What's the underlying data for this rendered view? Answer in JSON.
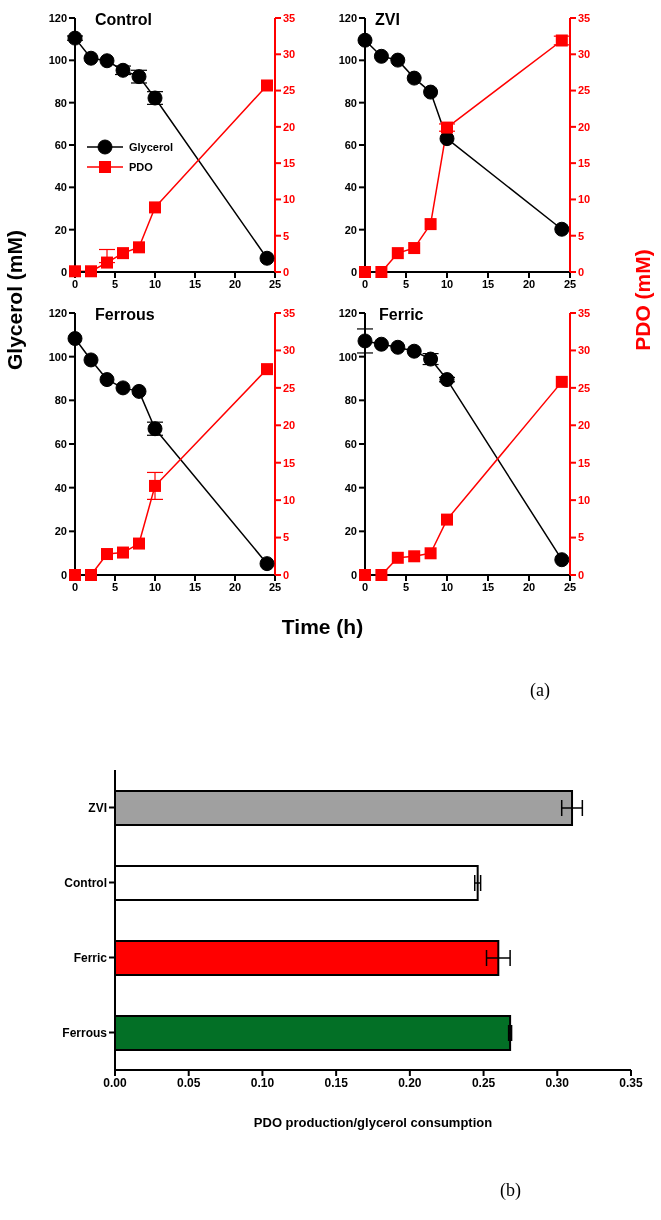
{
  "chart_data": [
    {
      "type": "line",
      "title": "Control",
      "ylabel": "Glycerol (mM)",
      "legend": "left",
      "xlim": [
        0,
        25
      ],
      "xticks": [
        0,
        5,
        10,
        15,
        20,
        25
      ],
      "ylim": [
        0,
        120
      ],
      "yticks": [
        0,
        20,
        40,
        60,
        80,
        100,
        120
      ],
      "y2lim": [
        0,
        35
      ],
      "y2ticks": [
        0,
        5,
        10,
        15,
        20,
        25,
        30,
        35
      ],
      "x": [
        0,
        2,
        4,
        6,
        8,
        10,
        24
      ],
      "series": [
        {
          "name": "Glycerol",
          "color": "#000000",
          "marker": "circle",
          "values": [
            110.5,
            101,
            99.8,
            95.3,
            92.3,
            82.2,
            6.5
          ],
          "errors": [
            1,
            null,
            null,
            2,
            3,
            3,
            null
          ]
        },
        {
          "name": "PDO",
          "color": "#ff0000",
          "marker": "square",
          "axis": "y2",
          "values": [
            0.1,
            0.1,
            1.3,
            2.6,
            3.4,
            8.9,
            25.7
          ],
          "errors": [
            null,
            null,
            [
              1.3,
              3.1
            ],
            null,
            null,
            null,
            null
          ]
        }
      ]
    },
    {
      "type": "line",
      "title": "ZVI",
      "y2label": "PDO (mM)",
      "xlim": [
        0,
        25
      ],
      "xticks": [
        0,
        5,
        10,
        15,
        20,
        25
      ],
      "ylim": [
        0,
        120
      ],
      "yticks": [
        0,
        20,
        40,
        60,
        80,
        100,
        120
      ],
      "y2lim": [
        0,
        35
      ],
      "y2ticks": [
        0,
        5,
        10,
        15,
        20,
        25,
        30,
        35
      ],
      "x": [
        0,
        2,
        4,
        6,
        8,
        10,
        24
      ],
      "series": [
        {
          "color": "#000000",
          "marker": "circle",
          "values": [
            109.5,
            101.9,
            100.1,
            91.6,
            85,
            63,
            20.2
          ]
        },
        {
          "color": "#ff0000",
          "marker": "square",
          "axis": "y2",
          "values": [
            0,
            0,
            2.6,
            3.3,
            6.6,
            19.9,
            31.9
          ],
          "errors": [
            null,
            null,
            null,
            null,
            null,
            0.5,
            0.6
          ]
        }
      ]
    },
    {
      "type": "line",
      "title": "Ferrous",
      "xlabel": "Time (h)",
      "xlim": [
        0,
        25
      ],
      "xticks": [
        0,
        5,
        10,
        15,
        20,
        25
      ],
      "ylim": [
        0,
        120
      ],
      "yticks": [
        0,
        20,
        40,
        60,
        80,
        100,
        120
      ],
      "y2lim": [
        0,
        35
      ],
      "y2ticks": [
        0,
        5,
        10,
        15,
        20,
        25,
        30,
        35
      ],
      "x": [
        0,
        2,
        4,
        6,
        8,
        10,
        24
      ],
      "series": [
        {
          "color": "#000000",
          "marker": "circle",
          "values": [
            108.3,
            98.5,
            89.5,
            85.7,
            84.1,
            67,
            5.2
          ],
          "errors": [
            null,
            null,
            null,
            null,
            null,
            3,
            null
          ]
        },
        {
          "color": "#ff0000",
          "marker": "square",
          "axis": "y2",
          "values": [
            0,
            0,
            2.8,
            3,
            4.2,
            11.9,
            27.5
          ],
          "errors": [
            null,
            null,
            null,
            null,
            null,
            1.8,
            null
          ]
        }
      ]
    },
    {
      "type": "line",
      "title": "Ferric",
      "annotations": [
        "(a)"
      ],
      "xlim": [
        0,
        25
      ],
      "xticks": [
        0,
        5,
        10,
        15,
        20,
        25
      ],
      "ylim": [
        0,
        120
      ],
      "yticks": [
        0,
        20,
        40,
        60,
        80,
        100,
        120
      ],
      "y2lim": [
        0,
        35
      ],
      "y2ticks": [
        0,
        5,
        10,
        15,
        20,
        25,
        30,
        35
      ],
      "x": [
        0,
        2,
        4,
        6,
        8,
        10,
        24
      ],
      "series": [
        {
          "color": "#000000",
          "marker": "circle",
          "values": [
            107.2,
            105.7,
            104.3,
            102.5,
            98.9,
            89.5,
            7
          ],
          "errors": [
            5.5,
            null,
            null,
            null,
            2.5,
            1,
            null
          ]
        },
        {
          "color": "#ff0000",
          "marker": "square",
          "axis": "y2",
          "values": [
            0,
            0,
            2.3,
            2.5,
            2.9,
            7.4,
            25.8
          ]
        }
      ]
    },
    {
      "type": "bar",
      "orientation": "horizontal",
      "xlabel": "PDO production/glycerol consumption",
      "annotations": [
        "(b)"
      ],
      "categories": [
        "ZVI",
        "Control",
        "Ferric",
        "Ferrous"
      ],
      "values": [
        0.31,
        0.246,
        0.26,
        0.268
      ],
      "errors": [
        0.007,
        0.002,
        0.008,
        0.001
      ],
      "colors": [
        "#a0a0a0",
        "#ffffff",
        "#ff0000",
        "#037026"
      ],
      "xlim": [
        0,
        0.35
      ],
      "xticks": [
        {
          "value": 0,
          "label": "0.00"
        },
        {
          "value": 0.05,
          "label": "0.05"
        },
        {
          "value": 0.1,
          "label": "0.10"
        },
        {
          "value": 0.15,
          "label": "0.15"
        },
        {
          "value": 0.2,
          "label": "0.20"
        },
        {
          "value": 0.25,
          "label": "0.25"
        },
        {
          "value": 0.3,
          "label": "0.30"
        },
        {
          "value": 0.35,
          "label": "0.35"
        }
      ]
    }
  ]
}
